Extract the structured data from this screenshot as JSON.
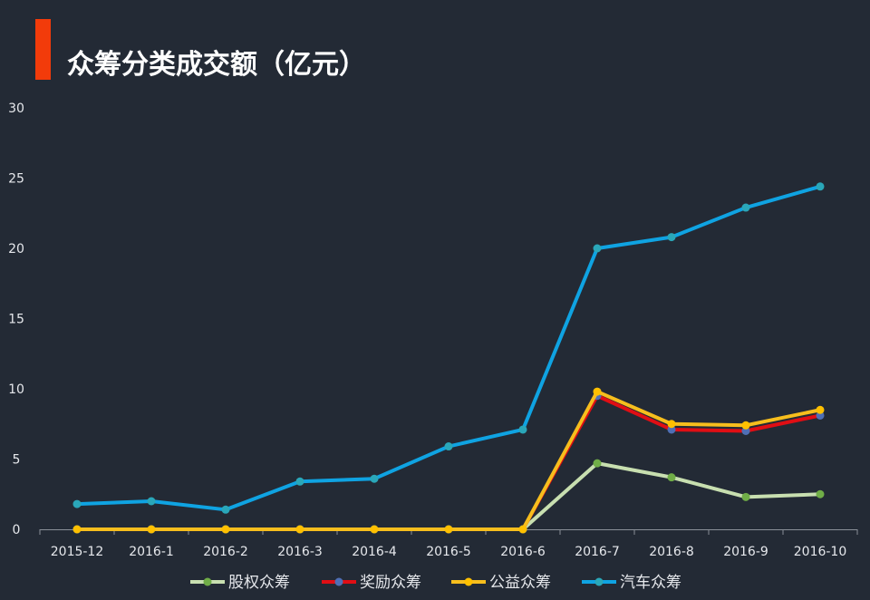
{
  "header": {
    "title": "众筹分类成交额（亿元）",
    "accent_color": "#f23b0a"
  },
  "chart_data": {
    "type": "line",
    "title": "众筹分类成交额（亿元）",
    "xlabel": "",
    "ylabel": "",
    "categories": [
      "2015-12",
      "2016-1",
      "2016-2",
      "2016-3",
      "2016-4",
      "2016-5",
      "2016-6",
      "2016-7",
      "2016-8",
      "2016-9",
      "2016-10"
    ],
    "ylim": [
      0,
      30
    ],
    "yticks": [
      0,
      5,
      10,
      15,
      20,
      25,
      30
    ],
    "grid": false,
    "legend_position": "bottom",
    "series": [
      {
        "name": "股权众筹",
        "line_color": "#c8dfb0",
        "marker_color": "#70ad47",
        "values": [
          0,
          0,
          0,
          0,
          0,
          0,
          0,
          4.7,
          3.7,
          2.3,
          2.5
        ]
      },
      {
        "name": "奖励众筹",
        "line_color": "#e00e14",
        "marker_color": "#4f6fb5",
        "values": [
          0,
          0,
          0,
          0,
          0,
          0,
          0,
          9.5,
          7.1,
          7.0,
          8.1
        ]
      },
      {
        "name": "公益众筹",
        "line_color": "#f7be1d",
        "marker_color": "#ffc000",
        "values": [
          0,
          0,
          0,
          0,
          0,
          0,
          0,
          9.8,
          7.5,
          7.4,
          8.5
        ]
      },
      {
        "name": "汽车众筹",
        "line_color": "#0fa3e2",
        "marker_color": "#2aa7b9",
        "values": [
          1.8,
          2.0,
          1.4,
          3.4,
          3.6,
          5.9,
          7.1,
          20.0,
          20.8,
          22.9,
          24.4
        ]
      }
    ]
  }
}
